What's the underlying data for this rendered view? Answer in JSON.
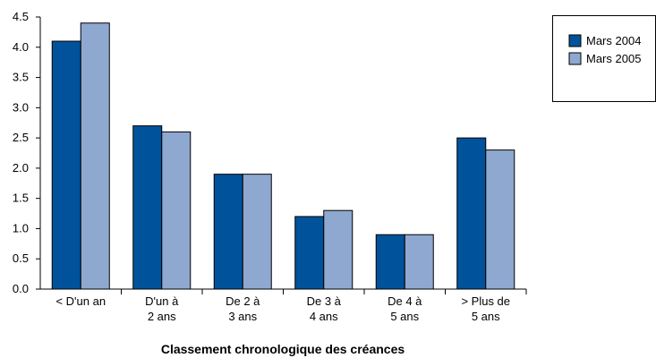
{
  "chart_data": {
    "type": "bar",
    "x_label": "Classement chronologique des créances",
    "categories": [
      "< D'un an",
      "D'un à\n2 ans",
      "De 2 à\n3 ans",
      "De 3 à\n4 ans",
      "De 4 à\n5 ans",
      "> Plus de\n5 ans"
    ],
    "series": [
      {
        "name": "Mars 2004",
        "color": "#00539b",
        "values": [
          4.1,
          2.7,
          1.9,
          1.2,
          0.9,
          2.5
        ]
      },
      {
        "name": "Mars 2005",
        "color": "#8fa8d0",
        "values": [
          4.4,
          2.6,
          1.9,
          1.3,
          0.9,
          2.3
        ]
      }
    ],
    "ylim": [
      0,
      4.5
    ],
    "yticks": [
      {
        "value": 0,
        "label": "0.0"
      },
      0.5,
      {
        "value": 1,
        "label": "1.0"
      },
      1.5,
      {
        "value": 2,
        "label": "2.0"
      },
      2.5,
      {
        "value": 3,
        "label": "3.0"
      },
      3.5,
      {
        "value": 4,
        "label": "4.0"
      },
      4.5
    ],
    "legend": "top-right"
  }
}
